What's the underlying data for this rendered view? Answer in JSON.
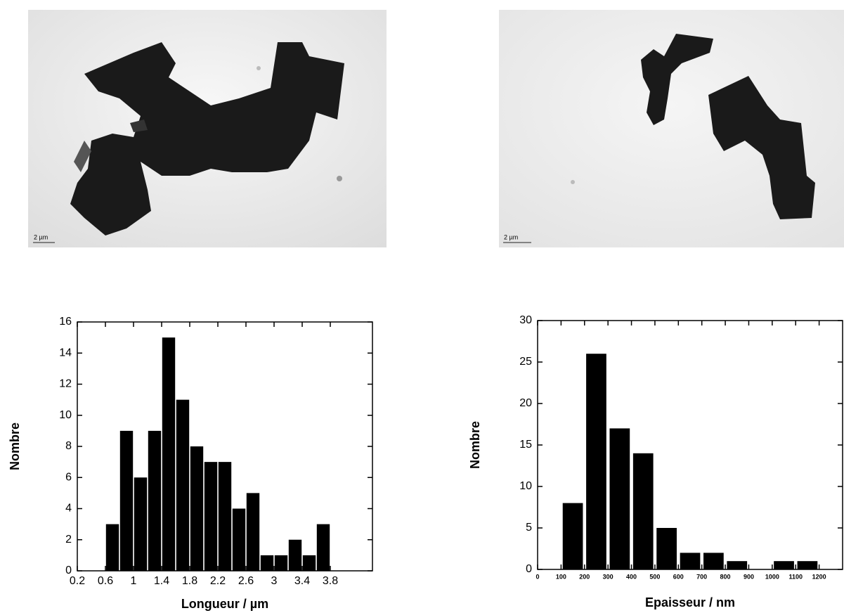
{
  "images": [
    {
      "scale_bar": "2 µm"
    },
    {
      "scale_bar": "2 µm"
    }
  ],
  "chart_data": [
    {
      "type": "histogram",
      "xlabel": "Longueur / µm",
      "ylabel": "Nombre",
      "bins": [
        0.6,
        0.8,
        1.0,
        1.2,
        1.4,
        1.6,
        1.8,
        2.0,
        2.2,
        2.4,
        2.6,
        2.8,
        3.0,
        3.2,
        3.4,
        3.6,
        3.8
      ],
      "counts": [
        3,
        9,
        6,
        9,
        15,
        11,
        8,
        7,
        7,
        4,
        5,
        1,
        1,
        2,
        1,
        3
      ],
      "color": "#000000",
      "xlim": [
        0.2,
        4.4
      ],
      "xticks": [
        0.2,
        0.6,
        1,
        1.4,
        1.8,
        2.2,
        2.6,
        3,
        3.4,
        3.8
      ],
      "ylim": [
        0,
        16
      ],
      "yticks": [
        0,
        2,
        4,
        6,
        8,
        10,
        12,
        14,
        16
      ]
    },
    {
      "type": "histogram",
      "xlabel": "Epaisseur / nm",
      "ylabel": "Nombre",
      "bins": [
        100,
        200,
        300,
        400,
        500,
        600,
        700,
        800,
        900,
        1000,
        1100,
        1200
      ],
      "counts": [
        8,
        26,
        17,
        14,
        5,
        2,
        2,
        1,
        0,
        1,
        1
      ],
      "color": "#000000",
      "xlim": [
        0,
        1300
      ],
      "xticks": [
        0,
        100,
        200,
        300,
        400,
        500,
        600,
        700,
        800,
        900,
        1000,
        1100,
        1200
      ],
      "ylim": [
        0,
        30
      ],
      "yticks": [
        0,
        5,
        10,
        15,
        20,
        25,
        30
      ]
    }
  ]
}
